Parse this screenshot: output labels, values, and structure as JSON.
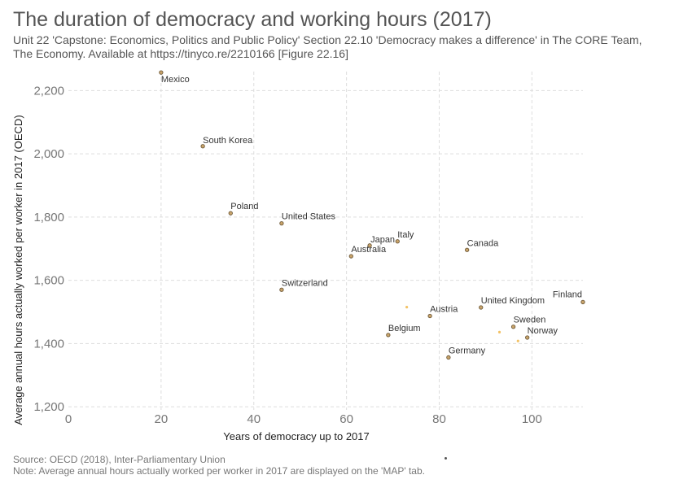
{
  "title": "The duration of democracy and working hours (2017)",
  "subtitle": [
    "Unit 22 'Capstone: Economics, Politics and Public Policy' Section 22.10 'Democracy makes a difference' in The CORE Team,",
    "The Economy. Available at https://tinyco.re/2210166 [Figure 22.16]"
  ],
  "source": "Source: OECD (2018), Inter-Parliamentary Union",
  "note": "Note: Average annual hours actually worked per worker in 2017 are displayed on the 'MAP' tab.",
  "colors": {
    "point_fill": "#c9a46b",
    "point_stroke": "#6e5a3a",
    "point_faint": "#f3c265",
    "grid": "#dddddd",
    "axis_text": "#777777",
    "label_text": "#333333"
  },
  "chart_data": {
    "type": "scatter",
    "xlabel": "Years of democracy up to 2017",
    "ylabel": "Average annual hours actually worked per worker in 2017 (OECD)",
    "xlim": [
      0,
      111
    ],
    "ylim": [
      1190,
      2260
    ],
    "xticks": [
      0,
      20,
      40,
      60,
      80,
      100
    ],
    "yticks": [
      1200,
      1400,
      1600,
      1800,
      2000,
      2200
    ],
    "xtick_labels": [
      "0",
      "20",
      "40",
      "60",
      "80",
      "100"
    ],
    "ytick_labels": [
      "1,200",
      "1,400",
      "1,600",
      "1,800",
      "2,000",
      "2,200"
    ],
    "grid": true,
    "points": [
      {
        "label": "Mexico",
        "x": 20,
        "y": 2257
      },
      {
        "label": "South Korea",
        "x": 29,
        "y": 2024
      },
      {
        "label": "Poland",
        "x": 35,
        "y": 1812
      },
      {
        "label": "United States",
        "x": 46,
        "y": 1780
      },
      {
        "label": "Japan",
        "x": 65,
        "y": 1710
      },
      {
        "label": "Italy",
        "x": 71,
        "y": 1723
      },
      {
        "label": "Australia",
        "x": 61,
        "y": 1676
      },
      {
        "label": "Canada",
        "x": 86,
        "y": 1696
      },
      {
        "label": "Switzerland",
        "x": 46,
        "y": 1570
      },
      {
        "label": "Finland",
        "x": 111,
        "y": 1531
      },
      {
        "label": "United Kingdom",
        "x": 89,
        "y": 1514
      },
      {
        "label": "Austria",
        "x": 78,
        "y": 1487
      },
      {
        "label": "Sweden",
        "x": 96,
        "y": 1453
      },
      {
        "label": "Belgium",
        "x": 69,
        "y": 1427
      },
      {
        "label": "Norway",
        "x": 99,
        "y": 1419
      },
      {
        "label": "Germany",
        "x": 82,
        "y": 1356
      }
    ],
    "unlabeled_points": [
      {
        "x": 73,
        "y": 1515
      },
      {
        "x": 93,
        "y": 1436
      },
      {
        "x": 97,
        "y": 1408
      }
    ]
  }
}
